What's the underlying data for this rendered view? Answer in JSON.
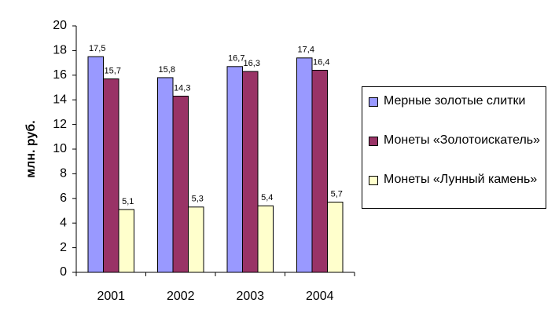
{
  "chart_data": {
    "type": "bar",
    "y_label": "млн. руб.",
    "categories": [
      "2001",
      "2002",
      "2003",
      "2004"
    ],
    "series": [
      {
        "name": "Мерные золотые слитки",
        "color": "#9999ff",
        "values": [
          17.5,
          15.8,
          16.7,
          17.4
        ],
        "value_labels": [
          "17,5",
          "15,8",
          "16,7",
          "17,4"
        ]
      },
      {
        "name": "Монеты «Золотоискатель»",
        "color": "#993366",
        "values": [
          15.7,
          14.3,
          16.3,
          16.4
        ],
        "value_labels": [
          "15,7",
          "14,3",
          "16,3",
          "16,4"
        ]
      },
      {
        "name": "Монеты «Лунный камень»",
        "color": "#ffffcc",
        "values": [
          5.1,
          5.3,
          5.4,
          5.7
        ],
        "value_labels": [
          "5,1",
          "5,3",
          "5,4",
          "5,7"
        ]
      }
    ],
    "ylim": [
      0,
      20
    ],
    "yticks": [
      0,
      2,
      4,
      6,
      8,
      10,
      12,
      14,
      16,
      18,
      20
    ],
    "legend": "right"
  }
}
